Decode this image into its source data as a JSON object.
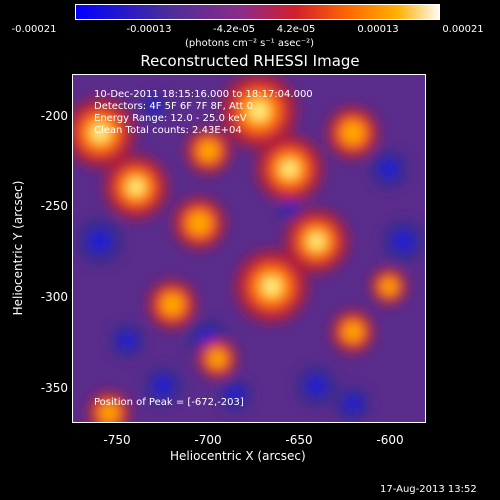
{
  "colorbar": {
    "ticks": [
      "-0.00021",
      "-0.00013",
      "-4.2e-05",
      "4.2e-05",
      "0.00013",
      "0.00021"
    ],
    "unit": "(photons cm⁻² s⁻¹ asec⁻²)"
  },
  "chart_data": {
    "type": "heatmap",
    "title": "Reconstructed RHESSI Image",
    "xlabel": "Heliocentric X (arcsec)",
    "ylabel": "Heliocentric Y (arcsec)",
    "xlim": [
      -775,
      -580
    ],
    "ylim": [
      -375,
      -183
    ],
    "xticks": [
      -750,
      -700,
      -650,
      -600
    ],
    "yticks": [
      -200,
      -250,
      -300,
      -350
    ],
    "colormap": [
      "#0000ff",
      "#4a2d9a",
      "#8a2c8a",
      "#d21e2d",
      "#ff6a00",
      "#ffb000",
      "#ffff80",
      "#ffffff"
    ],
    "colorbar_range": [
      -0.00021,
      0.00021
    ],
    "hotspots": [
      {
        "x": -672,
        "y": -203,
        "v": 1.0
      },
      {
        "x": -760,
        "y": -215,
        "v": 0.9
      },
      {
        "x": -740,
        "y": -245,
        "v": 0.8
      },
      {
        "x": -655,
        "y": -235,
        "v": 0.85
      },
      {
        "x": -640,
        "y": -275,
        "v": 0.8
      },
      {
        "x": -665,
        "y": -300,
        "v": 0.95
      },
      {
        "x": -705,
        "y": -265,
        "v": 0.6
      },
      {
        "x": -620,
        "y": -215,
        "v": 0.6
      },
      {
        "x": -720,
        "y": -310,
        "v": 0.55
      },
      {
        "x": -755,
        "y": -370,
        "v": 0.45
      },
      {
        "x": -695,
        "y": -340,
        "v": 0.4
      },
      {
        "x": -600,
        "y": -300,
        "v": 0.35
      },
      {
        "x": -700,
        "y": -225,
        "v": 0.5
      },
      {
        "x": -620,
        "y": -325,
        "v": 0.45
      }
    ],
    "coldspots": [
      {
        "x": -760,
        "y": -275,
        "v": 0.9
      },
      {
        "x": -700,
        "y": -330,
        "v": 0.8
      },
      {
        "x": -725,
        "y": -355,
        "v": 0.7
      },
      {
        "x": -640,
        "y": -355,
        "v": 0.75
      },
      {
        "x": -600,
        "y": -235,
        "v": 0.7
      },
      {
        "x": -592,
        "y": -275,
        "v": 0.8
      },
      {
        "x": -620,
        "y": -365,
        "v": 0.6
      },
      {
        "x": -745,
        "y": -330,
        "v": 0.6
      },
      {
        "x": -655,
        "y": -255,
        "v": 0.45
      },
      {
        "x": -730,
        "y": -200,
        "v": 0.4
      },
      {
        "x": -685,
        "y": -360,
        "v": 0.55
      }
    ]
  },
  "info": {
    "time": "10-Dec-2011 18:15:16.000 to 18:17:04.000",
    "detectors": "Detectors: 4F 5F 6F 7F 8F, Att 0",
    "energy": "Energy Range: 12.0 - 25.0 keV",
    "method": "Clean    Total counts: 2.43E+04",
    "peak": "Position of Peak = [-672,-203]"
  },
  "footer": {
    "date": "17-Aug-2013 13:52"
  }
}
